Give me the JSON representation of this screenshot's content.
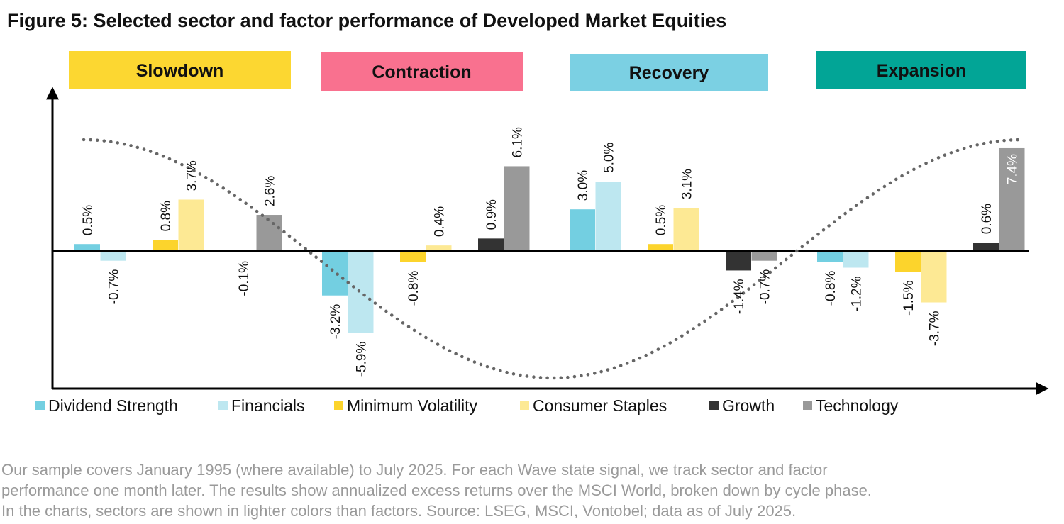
{
  "title": "Figure 5: Selected sector and factor performance of Developed Market Equities",
  "footnote_lines": [
    "Our sample covers January 1995 (where available) to July 2025. For each Wave state signal, we track sector and factor",
    "performance one month later. The results show annualized excess returns over the MSCI World, broken down by cycle phase.",
    "In the charts, sectors are shown in lighter colors than factors. Source: LSEG, MSCI, Vontobel; data as of July 2025."
  ],
  "chart_data": {
    "type": "bar",
    "unit": "%",
    "title": "Figure 5: Selected sector and factor performance of Developed Market Equities",
    "xlabel": "",
    "ylabel": "",
    "ylim": [
      -7.0,
      8.5
    ],
    "grid": false,
    "legend_position": "bottom",
    "phases": [
      {
        "name": "Slowdown",
        "color": "#fcd731",
        "text_color": "#111111"
      },
      {
        "name": "Contraction",
        "color": "#f9718f",
        "text_color": "#111111"
      },
      {
        "name": "Recovery",
        "color": "#7bd0e3",
        "text_color": "#111111"
      },
      {
        "name": "Expansion",
        "color": "#02a596",
        "text_color": "#111111"
      }
    ],
    "series": [
      {
        "name": "Dividend Strength",
        "color": "#73cfe1",
        "kind": "factor"
      },
      {
        "name": "Financials",
        "color": "#bde7f0",
        "kind": "sector"
      },
      {
        "name": "Minimum Volatility",
        "color": "#fcd42c",
        "kind": "factor"
      },
      {
        "name": "Consumer Staples",
        "color": "#fde994",
        "kind": "sector"
      },
      {
        "name": "Growth",
        "color": "#333333",
        "kind": "factor"
      },
      {
        "name": "Technology",
        "color": "#999999",
        "kind": "sector"
      }
    ],
    "groups": [
      {
        "phase": "Slowdown",
        "values": [
          0.5,
          -0.7,
          0.8,
          3.7,
          -0.1,
          2.6
        ],
        "labels": [
          "0.5%",
          "-0.7%",
          "0.8%",
          "3.7%",
          "-0.1%",
          "2.6%"
        ]
      },
      {
        "phase": "Contraction",
        "values": [
          -3.2,
          -5.9,
          -0.8,
          0.4,
          0.9,
          6.1
        ],
        "labels": [
          "-3.2%",
          "-5.9%",
          "-0.8%",
          "0.4%",
          "0.9%",
          "6.1%"
        ]
      },
      {
        "phase": "Recovery",
        "values": [
          3.0,
          5.0,
          0.5,
          3.1,
          -1.4,
          -0.7
        ],
        "labels": [
          "3.0%",
          "5.0%",
          "0.5%",
          "3.1%",
          "-1.4%",
          "-0.7%"
        ]
      },
      {
        "phase": "Expansion",
        "values": [
          -0.8,
          -1.2,
          -1.5,
          -3.7,
          0.6,
          7.4
        ],
        "labels": [
          "-0.8%",
          "-1.2%",
          "-1.5%",
          "-3.7%",
          "0.6%",
          "7.4%"
        ]
      }
    ],
    "cycle_curve": {
      "style": "dotted",
      "color": "#666666",
      "shape": "cosine",
      "description_level": "illustrative business cycle"
    }
  }
}
